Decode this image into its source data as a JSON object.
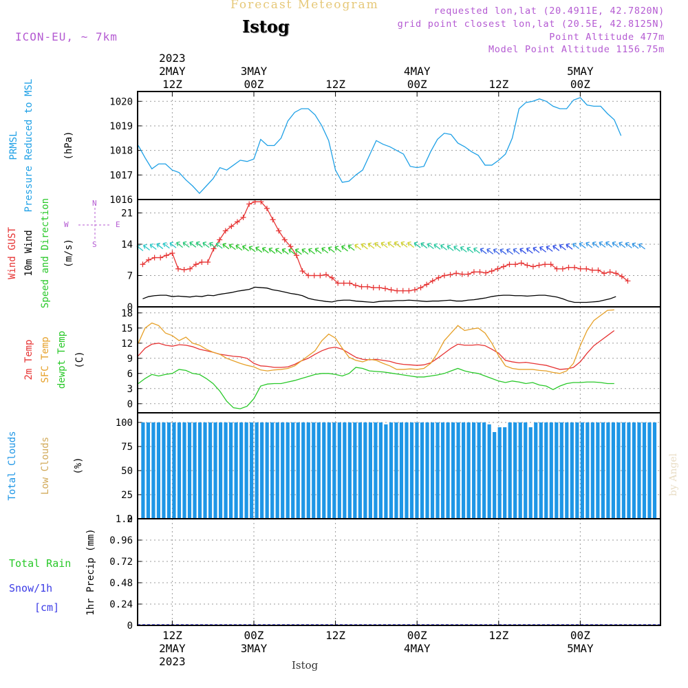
{
  "header": {
    "title": "Forecast Meteogram",
    "station": "Istog",
    "model": "ICON-EU, ~ 7km",
    "requested": "requested lon,lat (20.4911E, 42.7820N)",
    "gridpoint": "grid point closest lon,lat (20.5E, 42.8125N)",
    "point_altitude": "Point Altitude 477m",
    "model_altitude": "Model Point Altitude 1156.75m",
    "footer_station": "Istog",
    "watermark": "by Angel"
  },
  "time_axis": {
    "top_labels": [
      {
        "t": 0,
        "lines": [
          "2023",
          "2MAY",
          "12Z"
        ]
      },
      {
        "t": 12,
        "lines": [
          "3MAY",
          "00Z"
        ]
      },
      {
        "t": 24,
        "lines": [
          "12Z"
        ]
      },
      {
        "t": 36,
        "lines": [
          "4MAY",
          "00Z"
        ]
      },
      {
        "t": 48,
        "lines": [
          "12Z"
        ]
      },
      {
        "t": 60,
        "lines": [
          "5MAY",
          "00Z"
        ]
      }
    ],
    "bottom_labels": [
      {
        "t": 0,
        "lines": [
          "12Z",
          "2MAY",
          "2023"
        ]
      },
      {
        "t": 12,
        "lines": [
          "00Z",
          "3MAY"
        ]
      },
      {
        "t": 24,
        "lines": [
          "12Z"
        ]
      },
      {
        "t": 36,
        "lines": [
          "00Z",
          "4MAY"
        ]
      },
      {
        "t": 48,
        "lines": [
          "12Z"
        ]
      },
      {
        "t": 60,
        "lines": [
          "00Z",
          "5MAY"
        ]
      }
    ]
  },
  "colors": {
    "frame": "#000000",
    "grid": "#9a9a9a",
    "prmsl": "#1ea0e6",
    "gust": "#e63232",
    "wind10m": "#000000",
    "temp2m": "#e63232",
    "sfc_temp": "#e6a028",
    "dewpt": "#28c828",
    "total_clouds": "#1e96e6",
    "low_clouds": "#d2aa5a",
    "rain": "#28c828",
    "snow": "#3c3ce6",
    "purple": "#b45ad2",
    "title_gold": "#e6c878"
  },
  "chart_data": [
    {
      "type": "line",
      "panel": "pressure",
      "ylabel_lines": [
        {
          "text": "PRMSL",
          "color": "#1ea0e6"
        },
        {
          "text": "Pressure Reduced to MSL",
          "color": "#1ea0e6"
        },
        {
          "text": "(hPa)",
          "color": "#000000"
        }
      ],
      "ylim": [
        1016,
        1020.4
      ],
      "yticks": [
        1016,
        1017,
        1018,
        1019,
        1020
      ],
      "x_start": -5,
      "series": [
        {
          "name": "PRMSL",
          "color": "#1ea0e6",
          "values": [
            1018.2,
            1017.7,
            1017.25,
            1017.45,
            1017.45,
            1017.2,
            1017.1,
            1016.8,
            1016.55,
            1016.25,
            1016.55,
            1016.85,
            1017.3,
            1017.2,
            1017.4,
            1017.6,
            1017.55,
            1017.65,
            1018.45,
            1018.2,
            1018.2,
            1018.5,
            1019.2,
            1019.55,
            1019.7,
            1019.7,
            1019.45,
            1019.0,
            1018.4,
            1017.2,
            1016.7,
            1016.75,
            1017.0,
            1017.2,
            1017.8,
            1018.4,
            1018.25,
            1018.15,
            1018.0,
            1017.85,
            1017.35,
            1017.3,
            1017.35,
            1017.95,
            1018.45,
            1018.7,
            1018.65,
            1018.3,
            1018.15,
            1017.95,
            1017.8,
            1017.4,
            1017.4,
            1017.6,
            1017.85,
            1018.5,
            1019.7,
            1019.95,
            1020.0,
            1020.1,
            1020.0,
            1019.8,
            1019.7,
            1019.7,
            1020.05,
            1020.15,
            1019.85,
            1019.8,
            1019.8,
            1019.5,
            1019.25,
            1018.6
          ]
        }
      ]
    },
    {
      "type": "line",
      "panel": "wind",
      "ylabel_lines": [
        {
          "text": "Wind GUST",
          "color": "#e63232"
        },
        {
          "text": "10m Wind",
          "color": "#000000"
        },
        {
          "text": "Speed and Direction",
          "color": "#28c828"
        },
        {
          "text": "(m/s)",
          "color": "#000000"
        }
      ],
      "compass": {
        "N": "N",
        "S": "S",
        "E": "E",
        "W": "W"
      },
      "ylim": [
        0,
        24
      ],
      "yticks": [
        0,
        7,
        14,
        21
      ],
      "x_start": -5,
      "series": [
        {
          "name": "Wind GUST",
          "color": "#e63232",
          "marker": "+",
          "values": [
            9.5,
            10.5,
            11.0,
            11.0,
            11.5,
            12.0,
            8.5,
            8.3,
            8.5,
            9.5,
            10.0,
            10.0,
            13.0,
            15.0,
            17.0,
            18.0,
            19.0,
            20.0,
            23.0,
            23.5,
            23.5,
            22.0,
            19.5,
            17.0,
            15.0,
            13.5,
            11.5,
            8.0,
            7.0,
            7.0,
            7.0,
            7.2,
            6.5,
            5.3,
            5.3,
            5.3,
            4.8,
            4.5,
            4.5,
            4.3,
            4.3,
            4.1,
            3.8,
            3.6,
            3.6,
            3.6,
            3.8,
            4.3,
            5.0,
            5.8,
            6.5,
            7.0,
            7.2,
            7.5,
            7.3,
            7.3,
            7.8,
            7.8,
            7.6,
            8.0,
            8.5,
            9.0,
            9.5,
            9.5,
            9.8,
            9.3,
            9.0,
            9.3,
            9.5,
            9.5,
            8.5,
            8.5,
            8.8,
            8.8,
            8.5,
            8.5,
            8.2,
            8.2,
            7.5,
            7.8,
            7.5,
            6.8,
            5.8
          ]
        },
        {
          "name": "10m Wind",
          "color": "#000000",
          "values": [
            1.8,
            2.3,
            2.5,
            2.6,
            2.6,
            2.3,
            2.4,
            2.3,
            2.2,
            2.4,
            2.3,
            2.6,
            2.5,
            2.8,
            3.0,
            3.2,
            3.5,
            3.7,
            3.9,
            4.4,
            4.3,
            4.2,
            3.8,
            3.6,
            3.3,
            3.0,
            2.8,
            2.5,
            1.9,
            1.6,
            1.4,
            1.2,
            1.1,
            1.4,
            1.5,
            1.5,
            1.3,
            1.2,
            1.1,
            1.0,
            1.2,
            1.3,
            1.3,
            1.4,
            1.4,
            1.5,
            1.4,
            1.3,
            1.2,
            1.3,
            1.3,
            1.4,
            1.5,
            1.3,
            1.3,
            1.5,
            1.6,
            1.8,
            2.0,
            2.3,
            2.5,
            2.6,
            2.6,
            2.5,
            2.5,
            2.4,
            2.5,
            2.6,
            2.6,
            2.4,
            2.2,
            1.8,
            1.3,
            1.0,
            1.0,
            1.0,
            1.1,
            1.2,
            1.5,
            1.8,
            2.3
          ]
        },
        {
          "name": "Wind barbs",
          "color": "#28c828",
          "values": [
            1,
            1,
            1,
            1,
            1,
            1,
            2,
            2,
            2,
            2,
            2,
            2,
            2,
            3,
            3,
            3,
            3,
            3,
            3,
            3,
            3,
            3,
            3,
            3,
            3,
            3,
            3,
            3,
            3,
            3,
            3,
            3,
            3,
            4,
            4,
            4,
            4,
            4,
            4,
            4,
            4,
            4,
            5,
            5,
            5,
            5,
            5,
            5,
            5,
            5,
            5,
            5,
            6,
            6,
            6,
            6,
            6,
            6,
            7,
            7,
            7,
            7,
            7,
            7,
            7,
            7,
            8,
            8,
            8,
            8,
            8,
            8,
            8,
            8,
            8,
            8,
            8
          ]
        }
      ]
    },
    {
      "type": "line",
      "panel": "temperature",
      "ylabel_lines": [
        {
          "text": "2m Temp",
          "color": "#e63232"
        },
        {
          "text": "SFC Temp",
          "color": "#e6a028"
        },
        {
          "text": "dewpt Temp",
          "color": "#28c828"
        },
        {
          "text": "(C)",
          "color": "#000000"
        }
      ],
      "ylim": [
        -1.8,
        19.2
      ],
      "yticks": [
        0,
        3,
        6,
        9,
        12,
        15,
        18
      ],
      "x_start": -5,
      "series": [
        {
          "name": "2m Temp",
          "color": "#e63232",
          "values": [
            9.5,
            11.0,
            11.8,
            12.0,
            11.6,
            11.4,
            11.7,
            11.6,
            11.3,
            10.8,
            10.5,
            10.2,
            9.8,
            9.6,
            9.4,
            9.3,
            9.0,
            8.0,
            7.5,
            7.4,
            7.2,
            7.2,
            7.3,
            7.8,
            8.5,
            9.0,
            9.8,
            10.5,
            11.0,
            11.2,
            10.8,
            10.0,
            9.2,
            8.8,
            8.7,
            8.8,
            8.6,
            8.4,
            8.0,
            7.8,
            7.7,
            7.6,
            7.7,
            8.1,
            9.0,
            10.0,
            11.0,
            11.8,
            11.6,
            11.6,
            11.7,
            11.5,
            10.8,
            10.0,
            8.6,
            8.3,
            8.1,
            8.2,
            8.0,
            7.8,
            7.6,
            7.2,
            6.8,
            6.9,
            7.2,
            8.3,
            10.0,
            11.5,
            12.5,
            13.5,
            14.5
          ]
        },
        {
          "name": "SFC Temp",
          "color": "#e6a028",
          "values": [
            12.0,
            15.0,
            16.0,
            15.5,
            14.0,
            13.5,
            12.5,
            13.2,
            12.0,
            11.6,
            10.8,
            10.2,
            9.8,
            9.0,
            8.5,
            8.0,
            7.6,
            7.3,
            6.7,
            6.5,
            6.7,
            6.8,
            7.0,
            7.5,
            8.5,
            9.5,
            10.5,
            12.5,
            13.8,
            13.0,
            11.0,
            9.2,
            8.6,
            8.3,
            8.8,
            8.6,
            8.0,
            7.5,
            6.8,
            6.8,
            6.9,
            6.8,
            7.0,
            8.0,
            10.0,
            12.5,
            14.0,
            15.5,
            14.5,
            14.8,
            15.0,
            14.0,
            12.0,
            9.5,
            7.5,
            7.0,
            6.8,
            6.8,
            6.8,
            6.6,
            6.5,
            6.2,
            6.0,
            6.5,
            8.0,
            11.5,
            14.5,
            16.5,
            17.5,
            18.5,
            18.6
          ]
        },
        {
          "name": "dewpt Temp",
          "color": "#28c828",
          "values": [
            4.0,
            5.0,
            5.8,
            5.5,
            5.8,
            6.0,
            6.8,
            6.6,
            6.0,
            5.8,
            5.0,
            4.0,
            2.5,
            0.5,
            -0.8,
            -1.0,
            -0.5,
            1.0,
            3.5,
            3.9,
            4.0,
            4.0,
            4.3,
            4.6,
            5.0,
            5.4,
            5.8,
            6.0,
            6.0,
            5.8,
            5.5,
            6.0,
            7.2,
            7.0,
            6.5,
            6.4,
            6.3,
            6.1,
            5.9,
            5.7,
            5.5,
            5.3,
            5.3,
            5.5,
            5.7,
            6.0,
            6.5,
            7.0,
            6.5,
            6.2,
            6.0,
            5.5,
            5.0,
            4.5,
            4.2,
            4.5,
            4.3,
            4.0,
            4.2,
            3.7,
            3.5,
            2.8,
            3.5,
            4.0,
            4.2,
            4.2,
            4.3,
            4.3,
            4.2,
            4.0,
            4.0
          ]
        }
      ]
    },
    {
      "type": "bar",
      "panel": "clouds",
      "ylabel_lines": [
        {
          "text": "Total Clouds",
          "color": "#1e96e6"
        },
        {
          "text": "Low Clouds",
          "color": "#d2aa5a"
        },
        {
          "text": "(%)",
          "color": "#000000"
        }
      ],
      "ylim": [
        0,
        110
      ],
      "yticks": [
        0,
        25,
        50,
        75,
        100
      ],
      "x_start": -5,
      "series": [
        {
          "name": "Total Clouds",
          "color": "#1e96e6",
          "values": [
            100,
            100,
            100,
            100,
            100,
            100,
            100,
            100,
            100,
            100,
            100,
            100,
            100,
            100,
            100,
            100,
            100,
            100,
            100,
            100,
            100,
            100,
            100,
            100,
            100,
            100,
            100,
            100,
            100,
            100,
            100,
            100,
            100,
            100,
            100,
            100,
            100,
            100,
            100,
            100,
            100,
            100,
            100,
            100,
            100,
            100,
            100,
            98,
            100,
            100,
            100,
            100,
            100,
            100,
            100,
            100,
            100,
            100,
            100,
            100,
            100,
            100,
            100,
            100,
            100,
            100,
            100,
            98,
            90,
            95,
            95,
            100,
            100,
            100,
            100,
            95,
            100,
            100,
            100,
            100,
            100,
            100,
            100,
            100,
            100,
            100,
            100,
            100,
            100,
            100,
            100,
            100,
            100,
            100,
            100,
            100,
            100,
            100,
            100,
            100
          ]
        }
      ]
    },
    {
      "type": "bar",
      "panel": "precip",
      "ylabel_lines": [
        {
          "text": "Total  Rain",
          "color": "#28c828"
        },
        {
          "text": "Snow/1h",
          "color": "#3c3ce6"
        },
        {
          "text": "[cm]",
          "color": "#3c3ce6"
        },
        {
          "text": "1hr Precip (mm)",
          "color": "#000000"
        }
      ],
      "ylim": [
        0,
        1.2
      ],
      "yticks": [
        0,
        0.24,
        0.48,
        0.72,
        0.96,
        1.2
      ],
      "ytick_labels": [
        "0",
        "0.24",
        "0.48",
        "0.72",
        "0.96",
        "1.2"
      ],
      "x_start": -5,
      "series": [
        {
          "name": "Total Rain",
          "color": "#28c828",
          "values": [
            0,
            0,
            0,
            0,
            0,
            0,
            0,
            0,
            0,
            0,
            0,
            0,
            0,
            0,
            0,
            0,
            0,
            0,
            0,
            0,
            0,
            0,
            0,
            0,
            0,
            0,
            0,
            0,
            0,
            0,
            0,
            0,
            0,
            0,
            0,
            0,
            0,
            0,
            0,
            0,
            0,
            0,
            0,
            0,
            0,
            0,
            0,
            0,
            0,
            0,
            0,
            0,
            0,
            0,
            0,
            0,
            0,
            0,
            0,
            0,
            0,
            0,
            0,
            0,
            0,
            0,
            0,
            0,
            0,
            0,
            0,
            0,
            0,
            0,
            0,
            0,
            0,
            0,
            0,
            0,
            0,
            0,
            0,
            0,
            0,
            0,
            0,
            0,
            0,
            0,
            0,
            0,
            0,
            0,
            0,
            0,
            0,
            0,
            0,
            0
          ]
        }
      ]
    }
  ]
}
